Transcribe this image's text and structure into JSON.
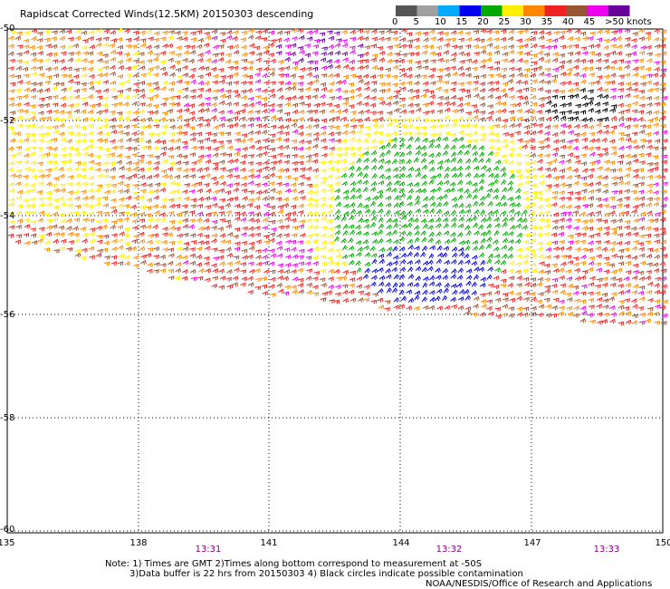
{
  "title": "Rapidscat Corrected Winds(12.5KM) 20150303 descending",
  "colorbar": {
    "labels": [
      "0",
      "5",
      "10",
      "15",
      "20",
      "25",
      "30",
      "35",
      "40",
      "45",
      ">50 knots"
    ],
    "colors": [
      "#555555",
      "#a0a0a0",
      "#00aaff",
      "#0000ee",
      "#00aa00",
      "#ffee00",
      "#ff8800",
      "#ee2222",
      "#995533",
      "#ee00ee",
      "#660099"
    ]
  },
  "axes": {
    "lat_labels": [
      "-50",
      "-52",
      "-54",
      "-56",
      "-58",
      "-60"
    ],
    "lon_labels": [
      "135",
      "138",
      "141",
      "144",
      "147",
      "150"
    ]
  },
  "times": [
    "13:31",
    "13:32",
    "13:33"
  ],
  "notes": {
    "line1": "Note: 1) Times are GMT 2)Times along bottom correspond to measurement at -50S",
    "line2": "3)Data buffer is 22 hrs from 20150303 4) Black circles indicate possible contamination",
    "line3": "NOAA/NESDIS/Office of Research and Applications"
  },
  "colors": {
    "time_label": "#800080"
  }
}
